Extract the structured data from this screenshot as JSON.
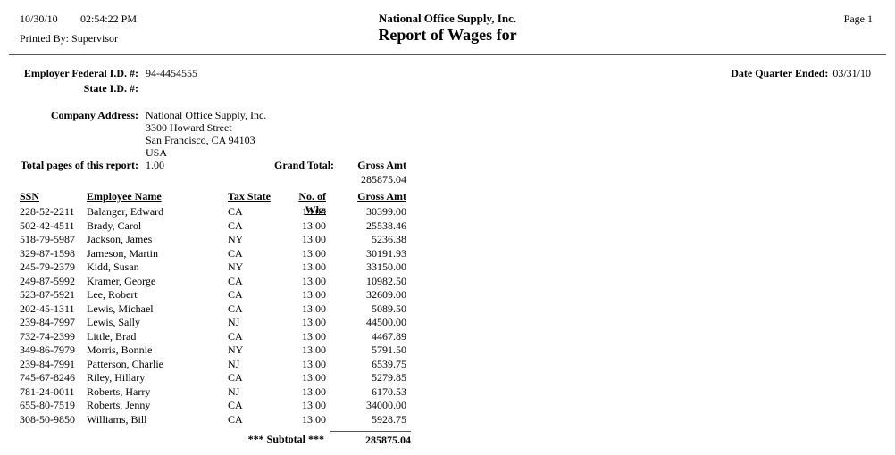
{
  "page": {
    "print_date": "10/30/10",
    "print_time": "02:54:22 PM",
    "printed_by_label": "Printed By:",
    "printed_by": "Supervisor",
    "company_name": "National Office Supply, Inc.",
    "report_title": "Report of Wages for",
    "page_label": "Page 1"
  },
  "info": {
    "federal_id_label": "Employer Federal I.D. #:",
    "federal_id": "94-4454555",
    "state_id_label": "State I.D. #:",
    "date_quarter_label": "Date Quarter Ended:",
    "date_quarter": "03/31/10",
    "company_address_label": "Company Address:",
    "address_lines": [
      "National Office Supply, Inc.",
      "3300 Howard Street",
      "San Francisco, CA 94103",
      "USA"
    ],
    "total_pages_label": "Total pages of this report:",
    "total_pages": "1.00",
    "grand_total_label": "Grand Total:",
    "grand_total_col_label": "Gross Amt",
    "grand_total_value": "285875.04"
  },
  "table": {
    "headers": {
      "ssn": "SSN",
      "name": "Employee Name",
      "state": "Tax State",
      "weeks": "No. of Wks",
      "gross": "Gross Amt"
    },
    "rows": [
      {
        "ssn": "228-52-2211",
        "name": "Balanger, Edward",
        "state": "CA",
        "weeks": "13.00",
        "gross": "30399.00"
      },
      {
        "ssn": "502-42-4511",
        "name": "Brady, Carol",
        "state": "CA",
        "weeks": "13.00",
        "gross": "25538.46"
      },
      {
        "ssn": "518-79-5987",
        "name": "Jackson, James",
        "state": "NY",
        "weeks": "13.00",
        "gross": "5236.38"
      },
      {
        "ssn": "329-87-1598",
        "name": "Jameson, Martin",
        "state": "CA",
        "weeks": "13.00",
        "gross": "30191.93"
      },
      {
        "ssn": "245-79-2379",
        "name": "Kidd, Susan",
        "state": "NY",
        "weeks": "13.00",
        "gross": "33150.00"
      },
      {
        "ssn": "249-87-5992",
        "name": "Kramer, George",
        "state": "CA",
        "weeks": "13.00",
        "gross": "10982.50"
      },
      {
        "ssn": "523-87-5921",
        "name": "Lee, Robert",
        "state": "CA",
        "weeks": "13.00",
        "gross": "32609.00"
      },
      {
        "ssn": "202-45-1311",
        "name": "Lewis, Michael",
        "state": "CA",
        "weeks": "13.00",
        "gross": "5089.50"
      },
      {
        "ssn": "239-84-7997",
        "name": "Lewis, Sally",
        "state": "NJ",
        "weeks": "13.00",
        "gross": "44500.00"
      },
      {
        "ssn": "732-74-2399",
        "name": "Little, Brad",
        "state": "CA",
        "weeks": "13.00",
        "gross": "4467.89"
      },
      {
        "ssn": "349-86-7979",
        "name": "Morris, Bonnie",
        "state": "NY",
        "weeks": "13.00",
        "gross": "5791.50"
      },
      {
        "ssn": "239-84-7991",
        "name": "Patterson, Charlie",
        "state": "NJ",
        "weeks": "13.00",
        "gross": "6539.75"
      },
      {
        "ssn": "745-67-8246",
        "name": "Riley, Hillary",
        "state": "CA",
        "weeks": "13.00",
        "gross": "5279.85"
      },
      {
        "ssn": "781-24-0011",
        "name": "Roberts, Harry",
        "state": "NJ",
        "weeks": "13.00",
        "gross": "6170.53"
      },
      {
        "ssn": "655-80-7519",
        "name": "Roberts, Jenny",
        "state": "CA",
        "weeks": "13.00",
        "gross": "34000.00"
      },
      {
        "ssn": "308-50-9850",
        "name": "Williams, Bill",
        "state": "CA",
        "weeks": "13.00",
        "gross": "5928.75"
      }
    ],
    "subtotal_label": "*** Subtotal ***",
    "subtotal_value": "285875.04"
  }
}
